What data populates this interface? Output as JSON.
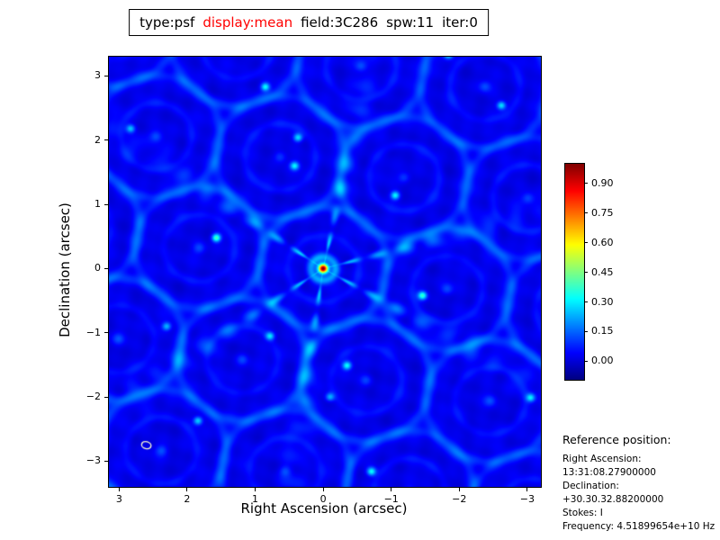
{
  "title_box": {
    "segments": [
      {
        "text": "type:psf",
        "color": "#000000"
      },
      {
        "text": "display:mean",
        "color": "#ff0000"
      },
      {
        "text": "field:3C286",
        "color": "#000000"
      },
      {
        "text": "spw:11",
        "color": "#000000"
      },
      {
        "text": "iter:0",
        "color": "#000000"
      }
    ]
  },
  "chart_data": {
    "type": "heatmap",
    "title": "type:psf display:mean field:3C286 spw:11 iter:0",
    "xlabel": "Right Ascension (arcsec)",
    "ylabel": "Declination (arcsec)",
    "xlim": [
      3.15,
      -3.2
    ],
    "ylim": [
      -3.4,
      3.3
    ],
    "xticks": [
      3,
      2,
      1,
      0,
      -1,
      -2,
      -3
    ],
    "yticks": [
      -3,
      -2,
      -1,
      0,
      1,
      2,
      3
    ],
    "colormap": "jet",
    "grid": false,
    "colorbar": {
      "position": "right",
      "vmin": -0.094,
      "vmax": 1.0,
      "tick_values": [
        0.9,
        0.75,
        0.6,
        0.45,
        0.3,
        0.15,
        0.0
      ],
      "tick_labels": [
        "0.90",
        "0.75",
        "0.60",
        "0.45",
        "0.30",
        "0.15",
        "0.00"
      ]
    },
    "peak": {
      "ra_offset": 0.0,
      "dec_offset": 0.0,
      "value": 1.0
    },
    "beam_marker": {
      "ra_offset": 2.6,
      "dec_offset": -2.75,
      "rx_arcsec": 0.07,
      "ry_arcsec": 0.055,
      "angle_deg": 15,
      "color": "#f6f6d0"
    },
    "psf_model": {
      "description": "PSF sidelobe pattern: bright core at origin, six radial spokes with knots, hexagonal lattice of faint grating rings, mottled blue background",
      "background": 0.015,
      "noise_amp": 0.028,
      "core_sigma": 0.05,
      "core_ring": {
        "radius": 0.18,
        "sigma": 0.05,
        "amp": 0.2
      },
      "spoke_angles_deg": [
        15,
        78,
        145,
        215,
        262,
        330
      ],
      "spoke_amp": 0.3,
      "spoke_sigma_rad": 0.05,
      "spoke_decay": 1.8,
      "knot_period": 0.42,
      "lattice_a": [
        1.822,
        0.321
      ],
      "lattice_b": [
        0.633,
        1.738
      ],
      "ring": {
        "radius": 0.95,
        "sigma": 0.06,
        "amp": 0.07
      },
      "inner_ring": {
        "radius": 0.52,
        "sigma": 0.05,
        "amp": 0.045
      },
      "lattice_bump": {
        "sigma": 0.06,
        "amp": 0.1
      },
      "hotspots": [
        {
          "x": 1.57,
          "y": 0.48,
          "amp": 0.38
        },
        {
          "x": -1.06,
          "y": 1.14,
          "amp": 0.3
        },
        {
          "x": 0.42,
          "y": 1.6,
          "amp": 0.28
        },
        {
          "x": 0.37,
          "y": 2.04,
          "amp": 0.26
        },
        {
          "x": -1.46,
          "y": -0.42,
          "amp": 0.34
        },
        {
          "x": 0.78,
          "y": -1.05,
          "amp": 0.26
        },
        {
          "x": -0.35,
          "y": -1.51,
          "amp": 0.3
        },
        {
          "x": 0.85,
          "y": 2.83,
          "amp": 0.3
        },
        {
          "x": -2.62,
          "y": 2.54,
          "amp": 0.28
        },
        {
          "x": 2.83,
          "y": 2.18,
          "amp": 0.24
        },
        {
          "x": -0.71,
          "y": -3.16,
          "amp": 0.3
        },
        {
          "x": 1.84,
          "y": -2.37,
          "amp": 0.26
        },
        {
          "x": -3.05,
          "y": -2.01,
          "amp": 0.26
        },
        {
          "x": -1.84,
          "y": 3.33,
          "amp": 0.28
        },
        {
          "x": 2.3,
          "y": -0.9,
          "amp": 0.22
        },
        {
          "x": -0.1,
          "y": -2.0,
          "amp": 0.22
        }
      ]
    }
  },
  "reference": {
    "heading": "Reference position:",
    "lines": [
      "Right Ascension: 13:31:08.27900000",
      "Declination: +30.30.32.88200000",
      "Stokes: I",
      "Frequency: 4.51899654e+10 Hz"
    ]
  }
}
